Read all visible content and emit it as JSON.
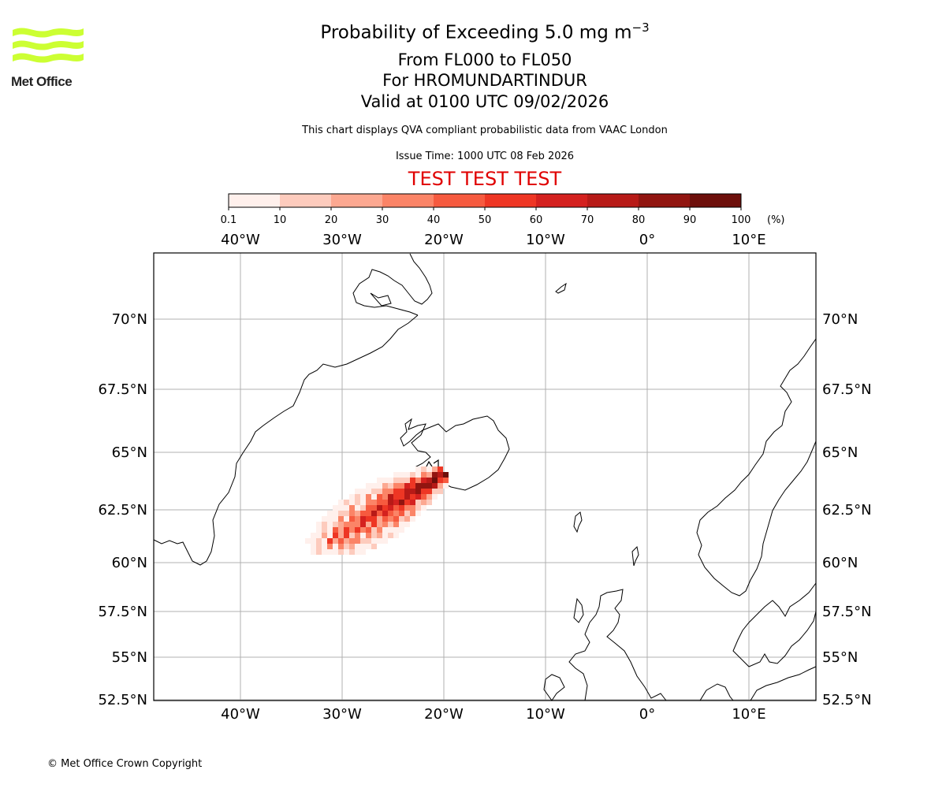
{
  "header": {
    "title_main": "Probability of Exceeding 5.0 mg m",
    "title_sup": "−3",
    "level_range": "From FL000 to FL050",
    "volcano": "For HROMUNDARTINDUR",
    "valid_time": "Valid at 0100 UTC 09/02/2026",
    "description": "This chart displays QVA compliant probabilistic data from VAAC London",
    "issue_time": "Issue Time: 1000 UTC 08 Feb 2026",
    "test_banner": "TEST TEST TEST"
  },
  "logo": {
    "text": "Met Office",
    "color": "#ccff33"
  },
  "colorbar": {
    "ticks": [
      "0.1",
      "10",
      "20",
      "30",
      "40",
      "50",
      "60",
      "70",
      "80",
      "90",
      "100"
    ],
    "unit": "(%)",
    "colors": [
      "#fff0ec",
      "#fdcbbd",
      "#fca891",
      "#fb8467",
      "#f65a3f",
      "#ee3624",
      "#d4211f",
      "#b71a17",
      "#911510",
      "#6d0f0b"
    ]
  },
  "map": {
    "lon_labels": [
      "40°W",
      "30°W",
      "20°W",
      "10°W",
      "0°",
      "10°E"
    ],
    "lat_labels": [
      "70°N",
      "67.5°N",
      "65°N",
      "62.5°N",
      "60°N",
      "57.5°N",
      "55°N",
      "52.5°N"
    ],
    "grid_color": "#b0b0b0"
  },
  "footer": {
    "copyright": "© Met Office Crown Copyright"
  }
}
